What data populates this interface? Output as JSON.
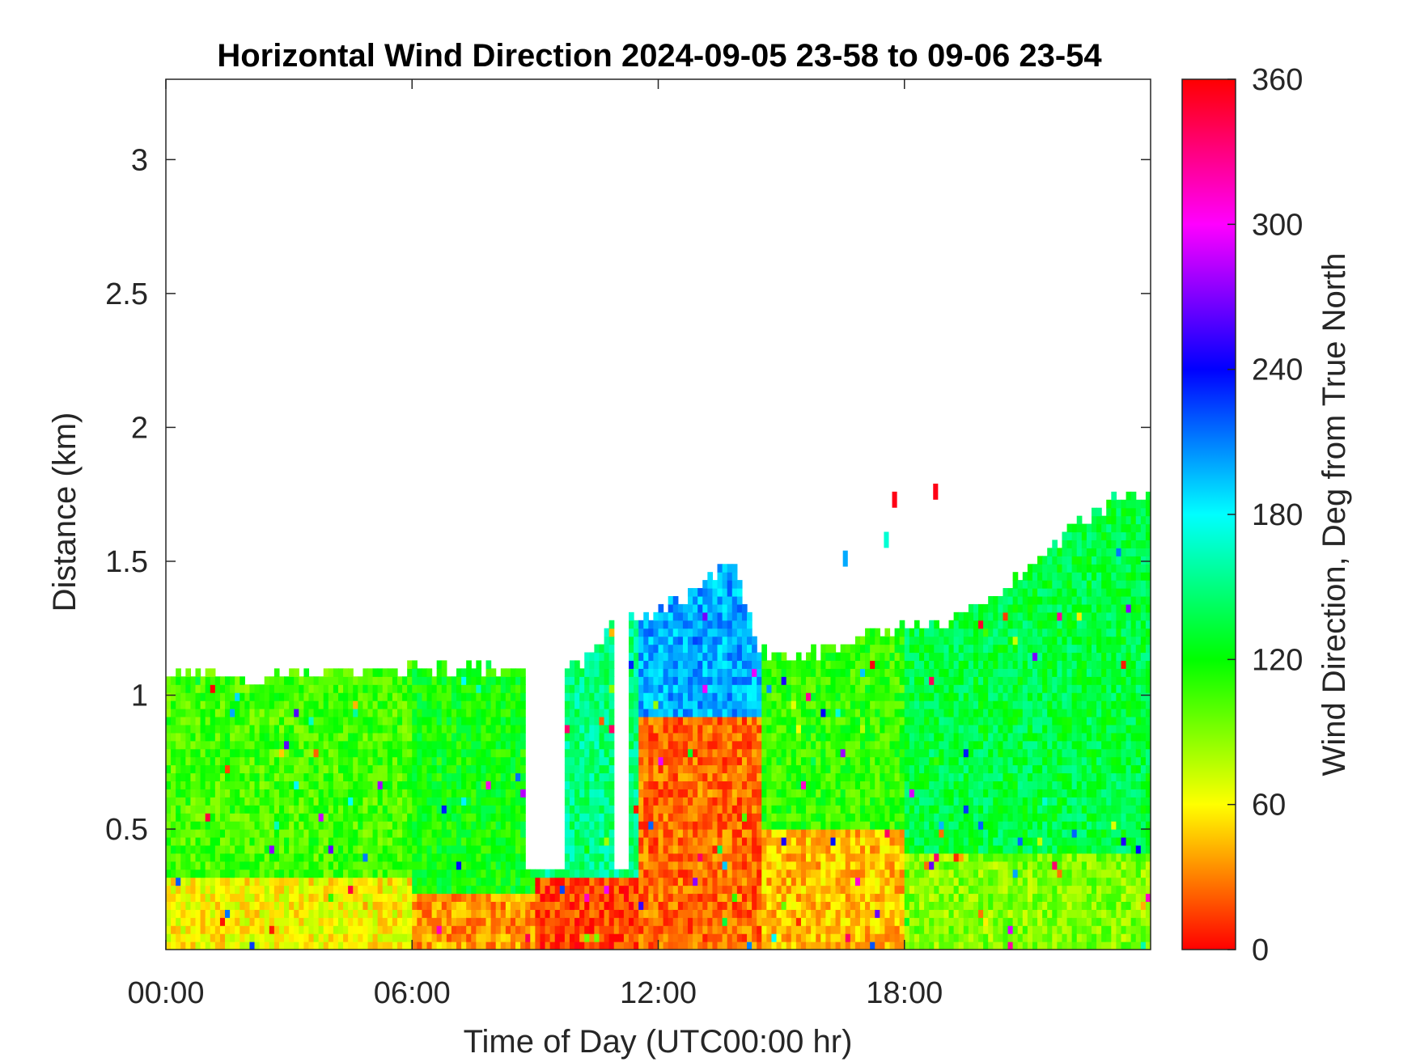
{
  "chart_data": {
    "type": "heatmap",
    "title": "Horizontal Wind Direction 2024-09-05 23-58 to 09-06 23-54",
    "xlabel": "Time of Day (UTC00:00 hr)",
    "ylabel": "Distance (km)",
    "colorbar_label": "Wind Direction, Deg from True North",
    "xlim_hours": [
      0,
      24
    ],
    "ylim_km": [
      0.05,
      3.3
    ],
    "clim_deg": [
      0,
      360
    ],
    "x_ticks": [
      {
        "value": 0,
        "label": "00:00"
      },
      {
        "value": 6,
        "label": "06:00"
      },
      {
        "value": 12,
        "label": "12:00"
      },
      {
        "value": 18,
        "label": "18:00"
      }
    ],
    "y_ticks": [
      {
        "value": 0.5,
        "label": "0.5"
      },
      {
        "value": 1,
        "label": "1"
      },
      {
        "value": 1.5,
        "label": "1.5"
      },
      {
        "value": 2,
        "label": "2"
      },
      {
        "value": 2.5,
        "label": "2.5"
      },
      {
        "value": 3,
        "label": "3"
      }
    ],
    "colorbar_ticks": [
      {
        "value": 0,
        "label": "0"
      },
      {
        "value": 60,
        "label": "60"
      },
      {
        "value": 120,
        "label": "120"
      },
      {
        "value": 180,
        "label": "180"
      },
      {
        "value": 240,
        "label": "240"
      },
      {
        "value": 300,
        "label": "300"
      },
      {
        "value": 360,
        "label": "360"
      }
    ],
    "colormap": [
      "#ff0000",
      "#ffff00",
      "#00ff00",
      "#00ffff",
      "#0000ff",
      "#ff00ff",
      "#ff0000"
    ],
    "grid": false,
    "data_top_km": [
      [
        0.0,
        1.05
      ],
      [
        1.0,
        1.08
      ],
      [
        2.0,
        1.05
      ],
      [
        3.0,
        1.06
      ],
      [
        4.0,
        1.07
      ],
      [
        5.0,
        1.08
      ],
      [
        6.0,
        1.08
      ],
      [
        7.0,
        1.08
      ],
      [
        8.0,
        1.08
      ],
      [
        9.0,
        1.08
      ],
      [
        10.0,
        1.1
      ],
      [
        11.0,
        1.25
      ],
      [
        12.0,
        1.3
      ],
      [
        13.0,
        1.38
      ],
      [
        13.8,
        1.5
      ],
      [
        14.5,
        1.15
      ],
      [
        15.0,
        1.12
      ],
      [
        16.0,
        1.15
      ],
      [
        17.0,
        1.2
      ],
      [
        18.0,
        1.25
      ],
      [
        19.0,
        1.25
      ],
      [
        20.0,
        1.35
      ],
      [
        21.0,
        1.45
      ],
      [
        22.0,
        1.6
      ],
      [
        23.0,
        1.7
      ],
      [
        24.0,
        1.75
      ]
    ],
    "direction_regimes": [
      {
        "from_h": 0,
        "to_h": 6,
        "below_km": 0.3,
        "deg": 60
      },
      {
        "from_h": 0,
        "to_h": 6,
        "above_km": 0.3,
        "deg": 105
      },
      {
        "from_h": 6,
        "to_h": 9,
        "below_km": 0.25,
        "deg": 35
      },
      {
        "from_h": 6,
        "to_h": 9,
        "above_km": 0.25,
        "deg": 120
      },
      {
        "from_h": 9,
        "to_h": 11.5,
        "below_km": 0.3,
        "deg": 15
      },
      {
        "from_h": 9,
        "to_h": 11.5,
        "above_km": 0.3,
        "deg": 150
      },
      {
        "from_h": 11.5,
        "to_h": 14.5,
        "below_km": 0.9,
        "deg": 25
      },
      {
        "from_h": 11.5,
        "to_h": 14.5,
        "above_km": 0.9,
        "deg": 200
      },
      {
        "from_h": 14.5,
        "to_h": 18,
        "below_km": 0.5,
        "deg": 45
      },
      {
        "from_h": 14.5,
        "to_h": 18,
        "above_km": 0.5,
        "deg": 110
      },
      {
        "from_h": 18,
        "to_h": 24,
        "below_km": 0.4,
        "deg": 90
      },
      {
        "from_h": 18,
        "to_h": 24,
        "above_km": 0.4,
        "deg": 135
      }
    ],
    "data_gaps": [
      {
        "from_h": 8.8,
        "to_h": 9.7,
        "above_km": 0.33
      },
      {
        "from_h": 10.9,
        "to_h": 11.3,
        "above_km": 0.33
      }
    ],
    "isolated_cells": [
      {
        "h": 16.5,
        "km": 1.48,
        "deg": 200
      },
      {
        "h": 17.5,
        "km": 1.55,
        "deg": 170
      },
      {
        "h": 17.7,
        "km": 1.7,
        "deg": 355
      },
      {
        "h": 18.7,
        "km": 1.73,
        "deg": 355
      }
    ]
  }
}
